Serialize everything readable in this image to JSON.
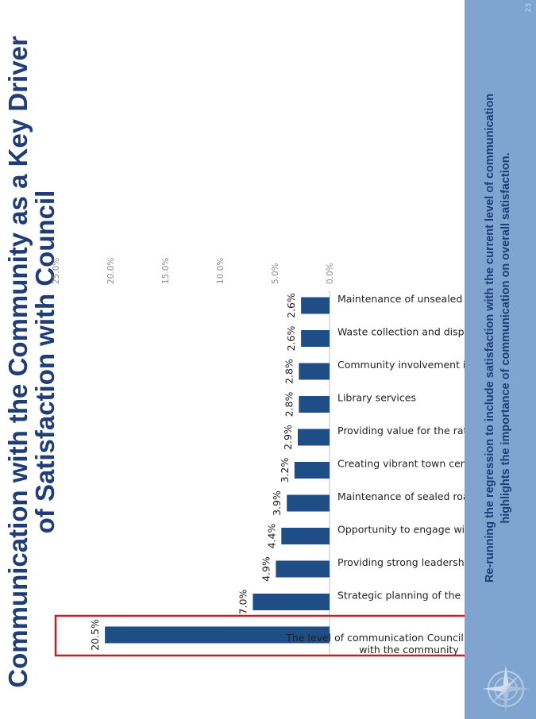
{
  "title": "Communication with the Community as a Key Driver of Satisfaction with Council",
  "footer": {
    "text": "Re-running the regression to include satisfaction with the current level of communication highlights the importance of communication on overall satisfaction.",
    "page_number": "23"
  },
  "colors": {
    "bar": "#1f4e87",
    "title": "#1f3e78",
    "highlight_box": "#c0202a",
    "footer_band": "#7fa4d0"
  },
  "chart_data": {
    "type": "bar",
    "orientation": "vertical-bars-on-rotated-slide",
    "categories": [
      [
        "The level of communication Council currently has",
        "with the community"
      ],
      [
        "Strategic planning of the LGA"
      ],
      [
        "Providing strong leadership"
      ],
      [
        "Opportunity to engage with Council"
      ],
      [
        "Maintenance of sealed roads"
      ],
      [
        "Creating vibrant town centres and public places"
      ],
      [
        "Providing value for the ratepayers' dollars"
      ],
      [
        "Library services"
      ],
      [
        "Community involvement in Council's planning"
      ],
      [
        "Waste collection and disposal"
      ],
      [
        "Maintenance of unsealed roads"
      ]
    ],
    "values": [
      20.5,
      7.0,
      4.9,
      4.4,
      3.9,
      3.2,
      2.9,
      2.8,
      2.8,
      2.6,
      2.6
    ],
    "value_labels": [
      "20.5%",
      "7.0%",
      "4.9%",
      "4.4%",
      "3.9%",
      "3.2%",
      "2.9%",
      "2.8%",
      "2.8%",
      "2.6%",
      "2.6%"
    ],
    "ticks": [
      "0.0%",
      "5.0%",
      "10.0%",
      "15.0%",
      "20.0%",
      "25.0%"
    ],
    "tick_values": [
      0,
      5,
      10,
      15,
      20,
      25
    ],
    "ylim": [
      0,
      25
    ],
    "highlighted_index": 0,
    "grid": false,
    "legend": "none"
  }
}
